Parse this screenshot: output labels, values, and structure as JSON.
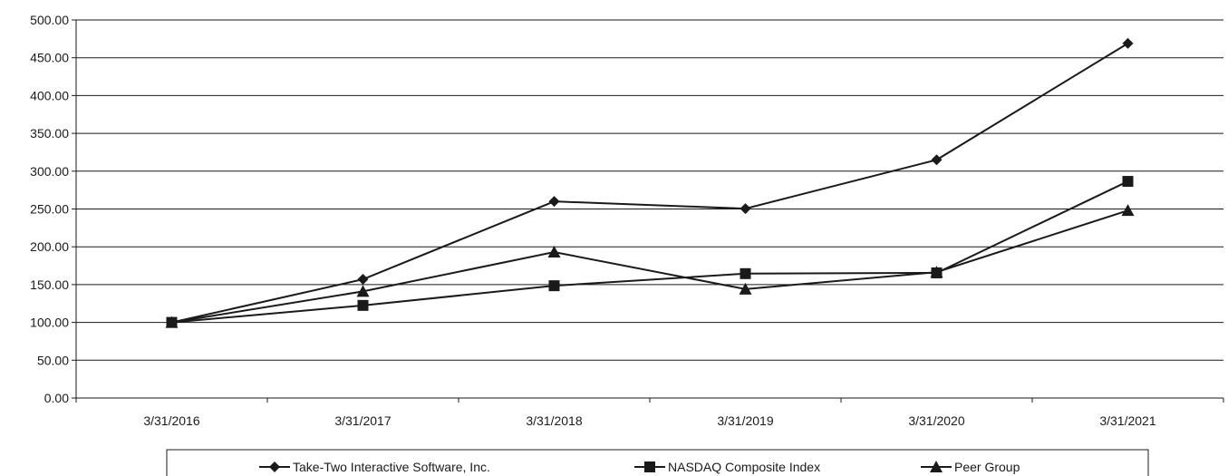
{
  "chart_data": {
    "type": "line",
    "categories": [
      "3/31/2016",
      "3/31/2017",
      "3/31/2018",
      "3/31/2019",
      "3/31/2020",
      "3/31/2021"
    ],
    "series": [
      {
        "name": "Take-Two Interactive Software, Inc.",
        "marker": "diamond",
        "values": [
          100.0,
          157.0,
          260.0,
          250.5,
          315.0,
          469.0
        ]
      },
      {
        "name": "NASDAQ Composite Index",
        "marker": "square",
        "values": [
          100.0,
          122.5,
          148.5,
          164.5,
          165.5,
          286.5
        ]
      },
      {
        "name": "Peer Group",
        "marker": "triangle",
        "values": [
          100.0,
          141.0,
          193.0,
          144.0,
          166.5,
          248.0
        ]
      }
    ],
    "y_ticks": [
      "0.00",
      "50.00",
      "100.00",
      "150.00",
      "200.00",
      "250.00",
      "300.00",
      "350.00",
      "400.00",
      "450.00",
      "500.00"
    ],
    "ylim": [
      0,
      500
    ],
    "grid": "horizontal",
    "legend_position": "bottom",
    "title": "",
    "xlabel": "",
    "ylabel": "",
    "line_color": "#1a1a1a"
  }
}
